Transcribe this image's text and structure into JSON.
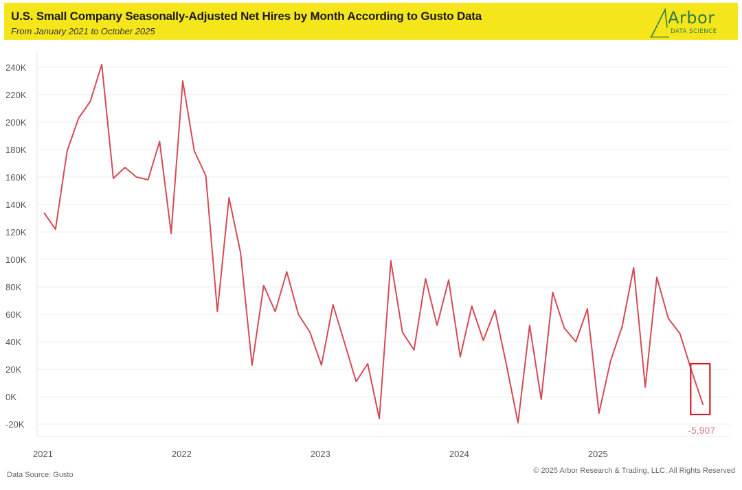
{
  "header": {
    "title": "U.S. Small Company Seasonally-Adjusted Net Hires by Month According to Gusto Data",
    "subtitle": "From January 2021 to October 2025"
  },
  "logo": {
    "name": "Arbor",
    "tagline": "DATA SCIENCE",
    "color": "#2f7a4a"
  },
  "footer": {
    "source": "Data Source: Gusto",
    "copyright": "© 2025 Arbor Research & Trading, LLC. All Rights Reserved"
  },
  "chart_data": {
    "type": "line",
    "title": "U.S. Small Company Seasonally-Adjusted Net Hires by Month According to Gusto Data",
    "subtitle": "From January 2021 to October 2025",
    "xlabel": "",
    "ylabel": "",
    "ylim": [
      -25000,
      250000
    ],
    "yticks": [
      -20000,
      0,
      20000,
      40000,
      60000,
      80000,
      100000,
      120000,
      140000,
      160000,
      180000,
      200000,
      220000,
      240000
    ],
    "ytick_labels": [
      "-20K",
      "0K",
      "20K",
      "40K",
      "60K",
      "80K",
      "100K",
      "120K",
      "140K",
      "160K",
      "180K",
      "200K",
      "220K",
      "240K"
    ],
    "xtick_labels": [
      "2021",
      "2022",
      "2023",
      "2024",
      "2025"
    ],
    "xtick_indices": [
      0,
      12,
      24,
      36,
      48
    ],
    "grid": true,
    "line_color": "#d44a55",
    "series": [
      {
        "name": "Net Hires",
        "values": [
          134000,
          122000,
          179000,
          203000,
          215000,
          242000,
          159000,
          167000,
          160000,
          158000,
          186000,
          119000,
          230000,
          179000,
          161000,
          62000,
          145000,
          105000,
          23000,
          81000,
          62000,
          91000,
          60000,
          47000,
          23000,
          67000,
          39000,
          11000,
          24000,
          -16000,
          99000,
          47000,
          34000,
          86000,
          52000,
          85000,
          29000,
          66000,
          41000,
          63000,
          23000,
          -19000,
          52000,
          -2000,
          76000,
          50000,
          40000,
          64000,
          -12000,
          26000,
          51000,
          94000,
          7000,
          87000,
          57000,
          46000,
          19000,
          -5907
        ]
      }
    ],
    "annotations": [
      {
        "text": "-5,907",
        "index": 57,
        "value": -5907,
        "highlight_box": true,
        "box_range": [
          -13000,
          24000
        ]
      }
    ]
  }
}
